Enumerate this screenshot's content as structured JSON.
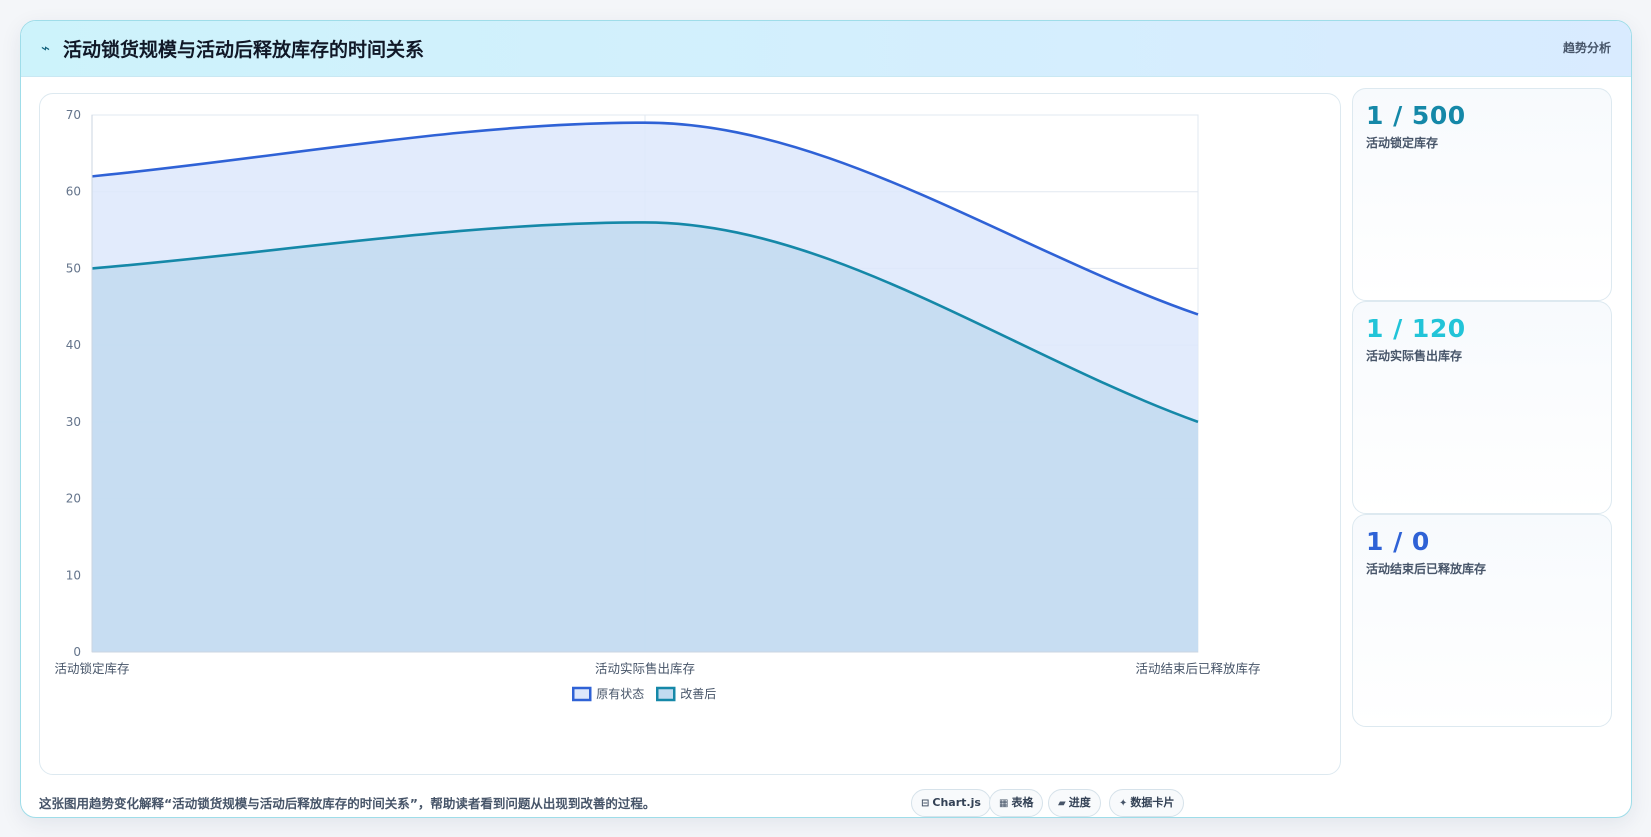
{
  "header": {
    "icon": "trend-line-icon",
    "title": "活动锁货规模与活动后释放库存的时间关系",
    "tag": "趋势分析"
  },
  "chart_data": {
    "type": "area",
    "categories": [
      "活动锁定库存",
      "活动实际售出库存",
      "活动结束后已释放库存"
    ],
    "series": [
      {
        "name": "原有状态",
        "values": [
          62,
          69,
          44
        ],
        "color": "#2f62d6",
        "fill": "#dde8fb"
      },
      {
        "name": "改善后",
        "values": [
          50,
          56,
          30
        ],
        "color": "#1588a8",
        "fill": "#c2dbf0"
      }
    ],
    "ylim": [
      0,
      70
    ],
    "yticks": [
      0,
      10,
      20,
      30,
      40,
      50,
      60,
      70
    ],
    "grid": true,
    "legend_position": "bottom"
  },
  "kpis": [
    {
      "value": "1 / 500",
      "label": "活动锁定库存",
      "color": "#1588a8"
    },
    {
      "value": "1 / 120",
      "label": "活动实际售出库存",
      "color": "#22c4d8"
    },
    {
      "value": "1 / 0",
      "label": "活动结束后已释放库存",
      "color": "#2f62d6"
    }
  ],
  "footnote": "这张图用趋势变化解释“活动锁货规模与活动后释放库存的时间关系”，帮助读者看到问题从出现到改善的过程。",
  "chips": [
    {
      "icon": "chart-icon",
      "glyph": "⊟",
      "label": "Chart.js"
    },
    {
      "icon": "table-icon",
      "glyph": "▦",
      "label": "表格"
    },
    {
      "icon": "progress-icon",
      "glyph": "▰",
      "label": "进度"
    },
    {
      "icon": "data-card-icon",
      "glyph": "✦",
      "label": "数据卡片"
    }
  ]
}
